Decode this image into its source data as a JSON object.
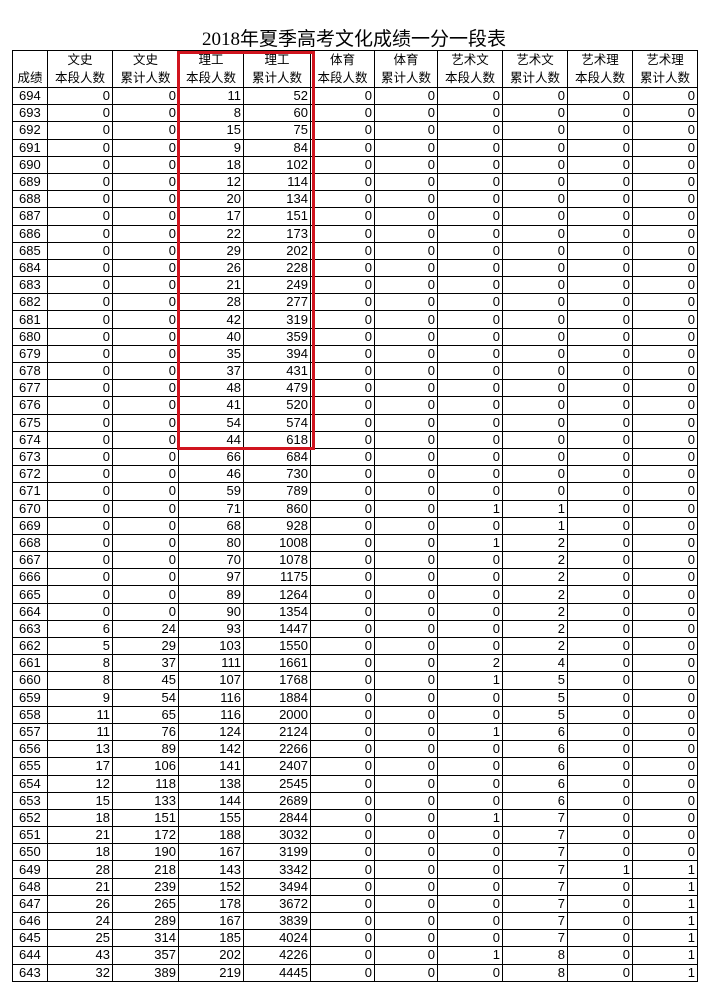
{
  "title": "2018年夏季高考文化成绩一分一段表",
  "highlight_color": "#d0141e",
  "highlighted_columns": [
    "理工 本段人数",
    "理工 累计人数"
  ],
  "highlighted_rows": "694-674",
  "headers": {
    "top": [
      "",
      "文史",
      "文史",
      "理工",
      "理工",
      "体育",
      "体育",
      "艺术文",
      "艺术文",
      "艺术理",
      "艺术理"
    ],
    "bottom": [
      "成绩",
      "本段人数",
      "累计人数",
      "本段人数",
      "累计人数",
      "本段人数",
      "累计人数",
      "本段人数",
      "累计人数",
      "本段人数",
      "累计人数"
    ]
  },
  "rows": [
    [
      694,
      0,
      0,
      11,
      52,
      0,
      0,
      0,
      0,
      0,
      0
    ],
    [
      693,
      0,
      0,
      8,
      60,
      0,
      0,
      0,
      0,
      0,
      0
    ],
    [
      692,
      0,
      0,
      15,
      75,
      0,
      0,
      0,
      0,
      0,
      0
    ],
    [
      691,
      0,
      0,
      9,
      84,
      0,
      0,
      0,
      0,
      0,
      0
    ],
    [
      690,
      0,
      0,
      18,
      102,
      0,
      0,
      0,
      0,
      0,
      0
    ],
    [
      689,
      0,
      0,
      12,
      114,
      0,
      0,
      0,
      0,
      0,
      0
    ],
    [
      688,
      0,
      0,
      20,
      134,
      0,
      0,
      0,
      0,
      0,
      0
    ],
    [
      687,
      0,
      0,
      17,
      151,
      0,
      0,
      0,
      0,
      0,
      0
    ],
    [
      686,
      0,
      0,
      22,
      173,
      0,
      0,
      0,
      0,
      0,
      0
    ],
    [
      685,
      0,
      0,
      29,
      202,
      0,
      0,
      0,
      0,
      0,
      0
    ],
    [
      684,
      0,
      0,
      26,
      228,
      0,
      0,
      0,
      0,
      0,
      0
    ],
    [
      683,
      0,
      0,
      21,
      249,
      0,
      0,
      0,
      0,
      0,
      0
    ],
    [
      682,
      0,
      0,
      28,
      277,
      0,
      0,
      0,
      0,
      0,
      0
    ],
    [
      681,
      0,
      0,
      42,
      319,
      0,
      0,
      0,
      0,
      0,
      0
    ],
    [
      680,
      0,
      0,
      40,
      359,
      0,
      0,
      0,
      0,
      0,
      0
    ],
    [
      679,
      0,
      0,
      35,
      394,
      0,
      0,
      0,
      0,
      0,
      0
    ],
    [
      678,
      0,
      0,
      37,
      431,
      0,
      0,
      0,
      0,
      0,
      0
    ],
    [
      677,
      0,
      0,
      48,
      479,
      0,
      0,
      0,
      0,
      0,
      0
    ],
    [
      676,
      0,
      0,
      41,
      520,
      0,
      0,
      0,
      0,
      0,
      0
    ],
    [
      675,
      0,
      0,
      54,
      574,
      0,
      0,
      0,
      0,
      0,
      0
    ],
    [
      674,
      0,
      0,
      44,
      618,
      0,
      0,
      0,
      0,
      0,
      0
    ],
    [
      673,
      0,
      0,
      66,
      684,
      0,
      0,
      0,
      0,
      0,
      0
    ],
    [
      672,
      0,
      0,
      46,
      730,
      0,
      0,
      0,
      0,
      0,
      0
    ],
    [
      671,
      0,
      0,
      59,
      789,
      0,
      0,
      0,
      0,
      0,
      0
    ],
    [
      670,
      0,
      0,
      71,
      860,
      0,
      0,
      1,
      1,
      0,
      0
    ],
    [
      669,
      0,
      0,
      68,
      928,
      0,
      0,
      0,
      1,
      0,
      0
    ],
    [
      668,
      0,
      0,
      80,
      1008,
      0,
      0,
      1,
      2,
      0,
      0
    ],
    [
      667,
      0,
      0,
      70,
      1078,
      0,
      0,
      0,
      2,
      0,
      0
    ],
    [
      666,
      0,
      0,
      97,
      1175,
      0,
      0,
      0,
      2,
      0,
      0
    ],
    [
      665,
      0,
      0,
      89,
      1264,
      0,
      0,
      0,
      2,
      0,
      0
    ],
    [
      664,
      0,
      0,
      90,
      1354,
      0,
      0,
      0,
      2,
      0,
      0
    ],
    [
      663,
      6,
      24,
      93,
      1447,
      0,
      0,
      0,
      2,
      0,
      0
    ],
    [
      662,
      5,
      29,
      103,
      1550,
      0,
      0,
      0,
      2,
      0,
      0
    ],
    [
      661,
      8,
      37,
      111,
      1661,
      0,
      0,
      2,
      4,
      0,
      0
    ],
    [
      660,
      8,
      45,
      107,
      1768,
      0,
      0,
      1,
      5,
      0,
      0
    ],
    [
      659,
      9,
      54,
      116,
      1884,
      0,
      0,
      0,
      5,
      0,
      0
    ],
    [
      658,
      11,
      65,
      116,
      2000,
      0,
      0,
      0,
      5,
      0,
      0
    ],
    [
      657,
      11,
      76,
      124,
      2124,
      0,
      0,
      1,
      6,
      0,
      0
    ],
    [
      656,
      13,
      89,
      142,
      2266,
      0,
      0,
      0,
      6,
      0,
      0
    ],
    [
      655,
      17,
      106,
      141,
      2407,
      0,
      0,
      0,
      6,
      0,
      0
    ],
    [
      654,
      12,
      118,
      138,
      2545,
      0,
      0,
      0,
      6,
      0,
      0
    ],
    [
      653,
      15,
      133,
      144,
      2689,
      0,
      0,
      0,
      6,
      0,
      0
    ],
    [
      652,
      18,
      151,
      155,
      2844,
      0,
      0,
      1,
      7,
      0,
      0
    ],
    [
      651,
      21,
      172,
      188,
      3032,
      0,
      0,
      0,
      7,
      0,
      0
    ],
    [
      650,
      18,
      190,
      167,
      3199,
      0,
      0,
      0,
      7,
      0,
      0
    ],
    [
      649,
      28,
      218,
      143,
      3342,
      0,
      0,
      0,
      7,
      1,
      1
    ],
    [
      648,
      21,
      239,
      152,
      3494,
      0,
      0,
      0,
      7,
      0,
      1
    ],
    [
      647,
      26,
      265,
      178,
      3672,
      0,
      0,
      0,
      7,
      0,
      1
    ],
    [
      646,
      24,
      289,
      167,
      3839,
      0,
      0,
      0,
      7,
      0,
      1
    ],
    [
      645,
      25,
      314,
      185,
      4024,
      0,
      0,
      0,
      7,
      0,
      1
    ],
    [
      644,
      43,
      357,
      202,
      4226,
      0,
      0,
      1,
      8,
      0,
      1
    ],
    [
      643,
      32,
      389,
      219,
      4445,
      0,
      0,
      0,
      8,
      0,
      1
    ]
  ]
}
